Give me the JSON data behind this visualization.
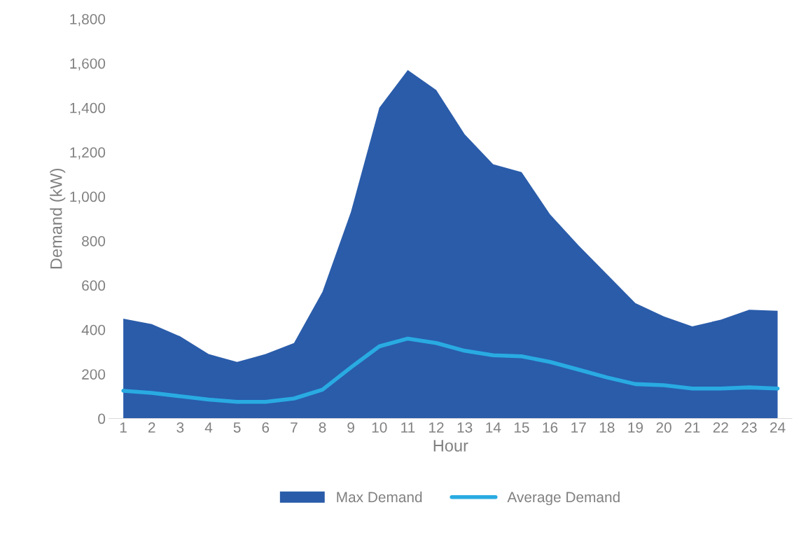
{
  "chart_data": {
    "type": "area",
    "xlabel": "Hour",
    "ylabel": "Demand (kW)",
    "categories": [
      "1",
      "2",
      "3",
      "4",
      "5",
      "6",
      "7",
      "8",
      "9",
      "10",
      "11",
      "12",
      "13",
      "14",
      "15",
      "16",
      "17",
      "18",
      "19",
      "20",
      "21",
      "22",
      "23",
      "24"
    ],
    "series": [
      {
        "name": "Max Demand",
        "color": "#2a5caa",
        "values": [
          450,
          425,
          370,
          290,
          255,
          290,
          340,
          570,
          930,
          1400,
          1570,
          1480,
          1280,
          1145,
          1110,
          920,
          780,
          650,
          520,
          460,
          415,
          445,
          490,
          485
        ]
      },
      {
        "name": "Average Demand",
        "type": "line",
        "color": "#29abe2",
        "values": [
          125,
          115,
          100,
          85,
          75,
          75,
          90,
          130,
          230,
          325,
          360,
          340,
          305,
          285,
          280,
          255,
          220,
          185,
          155,
          150,
          135,
          135,
          140,
          135
        ]
      }
    ],
    "ylim": [
      0,
      1800
    ],
    "yticks": [
      0,
      200,
      400,
      600,
      800,
      {
        "value": 1000,
        "label": "1,000"
      },
      {
        "value": 1200,
        "label": "1,200"
      },
      {
        "value": 1400,
        "label": "1,400"
      },
      {
        "value": 1600,
        "label": "1,600"
      },
      {
        "value": 1800,
        "label": "1,800"
      }
    ],
    "grid": false,
    "legend": "bottom",
    "marker": "none",
    "line_style": "solid"
  }
}
